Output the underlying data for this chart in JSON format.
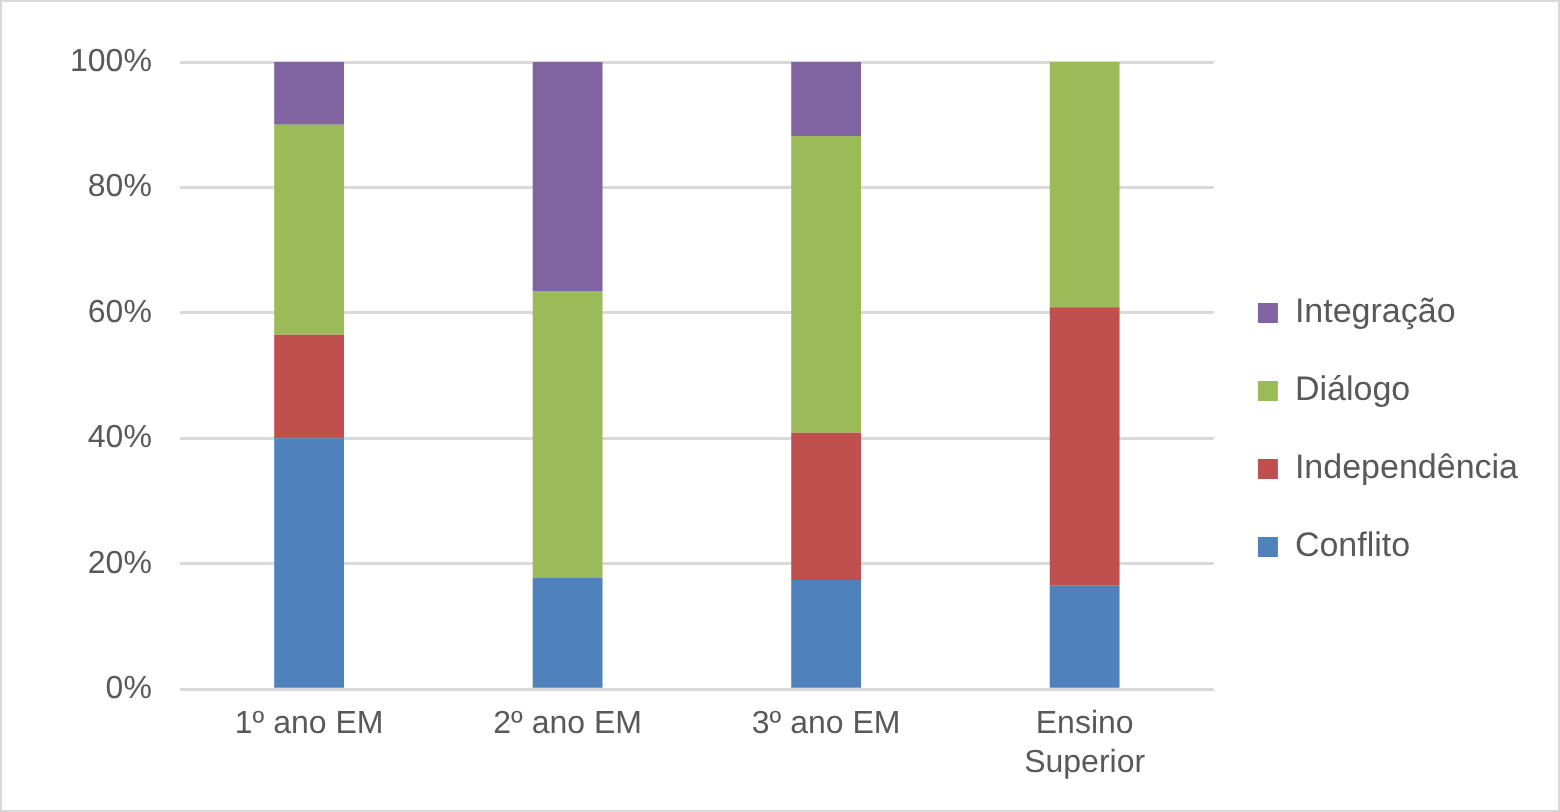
{
  "chart_data": {
    "type": "bar",
    "stacked": true,
    "categories": [
      "1º ano EM",
      "2º ano EM",
      "3º ano EM",
      "Ensino Superior"
    ],
    "series": [
      {
        "name": "Conflito",
        "color": "#4f81bd",
        "values": [
          40,
          17.8,
          17.4,
          16.5
        ]
      },
      {
        "name": "Independência",
        "color": "#c0504d",
        "values": [
          16.5,
          0,
          23.5,
          44.4
        ]
      },
      {
        "name": "Diálogo",
        "color": "#9bbb59",
        "values": [
          33.5,
          45.7,
          47.3,
          39.1
        ]
      },
      {
        "name": "Integração",
        "color": "#8064a2",
        "values": [
          10,
          36.5,
          11.8,
          0
        ]
      }
    ],
    "ylim": [
      0,
      100
    ],
    "yticks": [
      {
        "value": 0,
        "label": "0%"
      },
      {
        "value": 20,
        "label": "20%"
      },
      {
        "value": 40,
        "label": "40%"
      },
      {
        "value": 60,
        "label": "60%"
      },
      {
        "value": 80,
        "label": "80%"
      },
      {
        "value": 100,
        "label": "100%"
      }
    ],
    "grid": "y",
    "legend": "right"
  }
}
